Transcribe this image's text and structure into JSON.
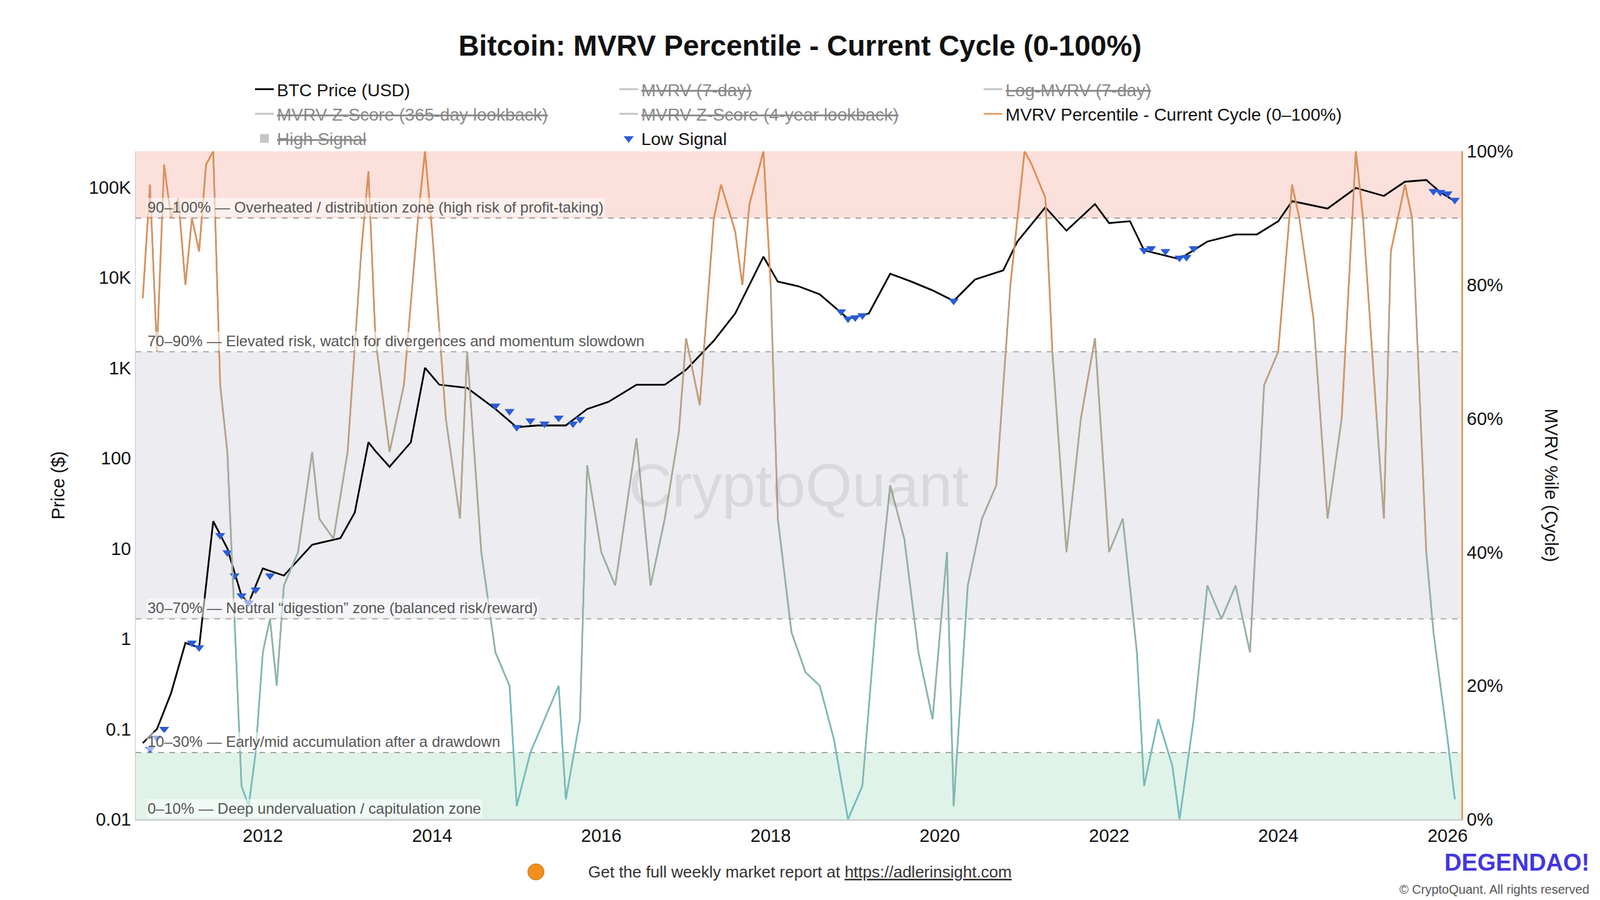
{
  "chart_data": {
    "type": "line",
    "title": "Bitcoin: MVRV Percentile - Current Cycle (0-100%)",
    "y_label": "Price ($)",
    "y2_label": "MVRV %ile (Cycle)",
    "log": "y",
    "grid": false,
    "legend": "top",
    "xlim": [
      "2010-07",
      "2026-03"
    ],
    "xticks": [
      {
        "value": "2012-01",
        "label": "2012"
      },
      {
        "value": "2014-01",
        "label": "2014"
      },
      {
        "value": "2016-01",
        "label": "2016"
      },
      {
        "value": "2018-01",
        "label": "2018"
      },
      {
        "value": "2020-01",
        "label": "2020"
      },
      {
        "value": "2022-01",
        "label": "2022"
      },
      {
        "value": "2024-01",
        "label": "2024"
      },
      {
        "value": "2026-01",
        "label": "2026"
      }
    ],
    "ylim": [
      0.01,
      250000
    ],
    "yticks": [
      0.01,
      0.1,
      1,
      10,
      100,
      {
        "value": 1000,
        "label": "1K"
      },
      {
        "value": 10000,
        "label": "10K"
      },
      {
        "value": 100000,
        "label": "100K"
      }
    ],
    "y2lim": [
      0,
      100
    ],
    "y2ticks": [
      {
        "value": 0,
        "label": "0%"
      },
      {
        "value": 20,
        "label": "20%"
      },
      {
        "value": 40,
        "label": "40%"
      },
      {
        "value": 60,
        "label": "60%"
      },
      {
        "value": 80,
        "label": "80%"
      },
      {
        "value": 100,
        "label": "100%"
      }
    ],
    "series": [
      {
        "name": "BTC Price (USD)",
        "type": "line",
        "color": "#000000",
        "axis": "y",
        "x": [
          "2010-08",
          "2010-10",
          "2010-12",
          "2011-02",
          "2011-04",
          "2011-06",
          "2011-08",
          "2011-10",
          "2011-11",
          "2012-01",
          "2012-04",
          "2012-08",
          "2012-12",
          "2013-02",
          "2013-04",
          "2013-05",
          "2013-07",
          "2013-10",
          "2013-12",
          "2014-02",
          "2014-06",
          "2014-10",
          "2015-01",
          "2015-04",
          "2015-08",
          "2015-11",
          "2016-02",
          "2016-06",
          "2016-10",
          "2017-01",
          "2017-05",
          "2017-08",
          "2017-12",
          "2018-02",
          "2018-05",
          "2018-08",
          "2018-12",
          "2019-03",
          "2019-06",
          "2019-09",
          "2019-12",
          "2020-03",
          "2020-06",
          "2020-10",
          "2020-12",
          "2021-04",
          "2021-07",
          "2021-11",
          "2022-01",
          "2022-04",
          "2022-06",
          "2022-11",
          "2023-03",
          "2023-07",
          "2023-10",
          "2024-01",
          "2024-03",
          "2024-08",
          "2024-12",
          "2025-04",
          "2025-07",
          "2025-10",
          "2025-12",
          "2026-02"
        ],
        "values": [
          0.07,
          0.1,
          0.25,
          0.9,
          0.8,
          20,
          10,
          3,
          2.5,
          6,
          5,
          11,
          13,
          25,
          150,
          120,
          80,
          150,
          1000,
          650,
          600,
          350,
          220,
          230,
          230,
          350,
          420,
          650,
          650,
          950,
          2000,
          4000,
          17000,
          9000,
          8000,
          6500,
          3500,
          4000,
          11000,
          9000,
          7200,
          5500,
          9500,
          12000,
          25000,
          60000,
          33000,
          65000,
          40000,
          42000,
          20000,
          16000,
          25000,
          30000,
          30000,
          42000,
          70000,
          58000,
          98000,
          80000,
          115000,
          120000,
          88000,
          70000
        ]
      },
      {
        "name": "MVRV (7-day)",
        "type": "line",
        "color": "#8c8c8c",
        "x": [],
        "values": []
      },
      {
        "name": "Log-MVRV (7-day)",
        "type": "line",
        "color": "#8c8c8c",
        "x": [],
        "values": []
      },
      {
        "name": "MVRV Z-Score (365-day lookback)",
        "type": "line",
        "color": "#8c8c8c",
        "x": [],
        "values": []
      },
      {
        "name": "MVRV Z-Score (4-year lookback)",
        "type": "line",
        "color": "#8c8c8c",
        "x": [],
        "values": []
      },
      {
        "name": "MVRV Percentile - Current Cycle (0–100%)",
        "type": "line",
        "color": "#e8944f",
        "axis": "y2",
        "x": [
          "2010-08",
          "2010-09",
          "2010-10",
          "2010-11",
          "2010-12",
          "2011-01",
          "2011-02",
          "2011-03",
          "2011-04",
          "2011-05",
          "2011-06",
          "2011-07",
          "2011-08",
          "2011-09",
          "2011-10",
          "2011-11",
          "2011-12",
          "2012-01",
          "2012-02",
          "2012-03",
          "2012-04",
          "2012-06",
          "2012-08",
          "2012-09",
          "2012-11",
          "2013-01",
          "2013-03",
          "2013-04",
          "2013-05",
          "2013-07",
          "2013-09",
          "2013-11",
          "2013-12",
          "2014-01",
          "2014-03",
          "2014-05",
          "2014-06",
          "2014-08",
          "2014-10",
          "2014-12",
          "2015-01",
          "2015-03",
          "2015-05",
          "2015-07",
          "2015-08",
          "2015-10",
          "2015-11",
          "2016-01",
          "2016-03",
          "2016-06",
          "2016-08",
          "2016-10",
          "2016-12",
          "2017-01",
          "2017-03",
          "2017-05",
          "2017-06",
          "2017-08",
          "2017-09",
          "2017-10",
          "2017-12",
          "2018-01",
          "2018-02",
          "2018-04",
          "2018-06",
          "2018-08",
          "2018-10",
          "2018-12",
          "2019-02",
          "2019-04",
          "2019-06",
          "2019-08",
          "2019-10",
          "2019-12",
          "2020-02",
          "2020-03",
          "2020-05",
          "2020-07",
          "2020-09",
          "2020-11",
          "2021-01",
          "2021-02",
          "2021-04",
          "2021-05",
          "2021-07",
          "2021-09",
          "2021-11",
          "2022-01",
          "2022-03",
          "2022-05",
          "2022-06",
          "2022-08",
          "2022-10",
          "2022-11",
          "2023-01",
          "2023-03",
          "2023-05",
          "2023-07",
          "2023-09",
          "2023-11",
          "2024-01",
          "2024-03",
          "2024-04",
          "2024-06",
          "2024-08",
          "2024-10",
          "2024-12",
          "2025-01",
          "2025-03",
          "2025-04",
          "2025-05",
          "2025-07",
          "2025-08",
          "2025-10",
          "2025-11",
          "2025-12",
          "2026-01",
          "2026-02"
        ],
        "values": [
          78,
          95,
          70,
          98,
          90,
          93,
          80,
          90,
          85,
          98,
          100,
          65,
          55,
          30,
          5,
          2,
          10,
          25,
          30,
          20,
          35,
          40,
          55,
          45,
          42,
          55,
          85,
          97,
          72,
          55,
          65,
          90,
          100,
          88,
          60,
          45,
          70,
          40,
          25,
          20,
          2,
          10,
          15,
          20,
          3,
          15,
          53,
          40,
          35,
          57,
          35,
          45,
          58,
          72,
          62,
          90,
          95,
          88,
          80,
          92,
          100,
          80,
          45,
          28,
          22,
          20,
          12,
          0,
          5,
          30,
          50,
          42,
          25,
          15,
          40,
          2,
          35,
          45,
          50,
          80,
          100,
          98,
          93,
          70,
          40,
          60,
          72,
          40,
          45,
          25,
          5,
          15,
          8,
          0,
          15,
          35,
          30,
          35,
          25,
          65,
          70,
          95,
          90,
          75,
          45,
          60,
          100,
          90,
          60,
          45,
          85,
          95,
          90,
          40,
          28,
          20,
          12,
          3
        ]
      },
      {
        "name": "High Signal",
        "type": "scatter",
        "marker": "square",
        "color": "#8c8c8c",
        "x": [],
        "values": []
      },
      {
        "name": "Low Signal",
        "type": "scatter",
        "marker": "triangle-down",
        "color": "#2a5bd7",
        "axis": "y",
        "x": [
          "2010-09",
          "2010-10",
          "2010-11",
          "2011-03",
          "2011-04",
          "2011-07",
          "2011-08",
          "2011-09",
          "2011-10",
          "2011-11",
          "2011-12",
          "2012-02",
          "2014-10",
          "2014-12",
          "2015-01",
          "2015-03",
          "2015-05",
          "2015-07",
          "2015-09",
          "2015-10",
          "2018-11",
          "2018-12",
          "2019-01",
          "2019-02",
          "2020-03",
          "2022-06",
          "2022-07",
          "2022-09",
          "2022-11",
          "2022-12",
          "2023-01",
          "2025-11",
          "2025-12",
          "2026-01",
          "2026-02"
        ],
        "values": [
          0.06,
          0.08,
          0.1,
          0.9,
          0.8,
          14,
          9,
          5,
          3,
          2.5,
          3.5,
          5,
          380,
          330,
          220,
          260,
          240,
          280,
          240,
          270,
          4200,
          3500,
          3600,
          3800,
          5500,
          20000,
          21000,
          19500,
          16500,
          16800,
          21000,
          90000,
          88000,
          85000,
          72000
        ]
      }
    ],
    "zones": [
      {
        "from": 0,
        "to": 10,
        "label": "0–10% — Deep undervaluation / capitulation zone",
        "color": "#d6efe0"
      },
      {
        "from": 10,
        "to": 30,
        "label": "10–30% — Early/mid accumulation after a drawdown",
        "color": "#ffffff"
      },
      {
        "from": 30,
        "to": 70,
        "label": "30–70% — Neutral “digestion” zone (balanced risk/reward)",
        "color": "#e6e6ec"
      },
      {
        "from": 70,
        "to": 90,
        "label": "70–90% — Elevated risk, watch for divergences and momentum slowdown",
        "color": "#ffffff"
      },
      {
        "from": 90,
        "to": 100,
        "label": "90–100% — Overheated / distribution zone (high risk of profit-taking)",
        "color": "#fad6d0"
      }
    ],
    "watermark": "CryptoQuant",
    "footer": "Get the full weekly market report at ",
    "footer_link": "https://adlerinsight.com",
    "copyright": "© CryptoQuant. All rights reserved",
    "logo_text": "DEGENDAO!"
  }
}
